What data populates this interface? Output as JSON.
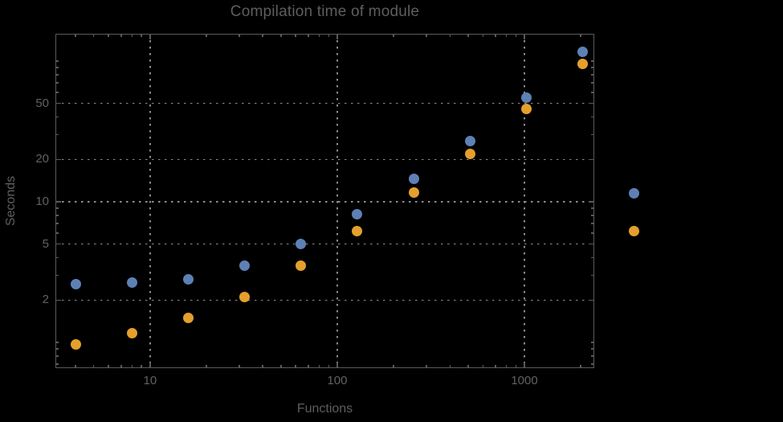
{
  "chart_data": {
    "type": "scatter",
    "title": "Compilation time of module",
    "xlabel": "Functions",
    "ylabel": "Seconds",
    "log_x": true,
    "log_y": true,
    "x": [
      4,
      8,
      16,
      32,
      64,
      128,
      256,
      512,
      1024,
      2048
    ],
    "series": [
      {
        "name": "blue",
        "color": "#5e81b5",
        "values": [
          2.6,
          2.65,
          2.8,
          3.5,
          5.0,
          8.2,
          14.5,
          27,
          55,
          117
        ]
      },
      {
        "name": "orange",
        "color": "#e5a02c",
        "values": [
          0.97,
          1.17,
          1.5,
          2.1,
          3.5,
          6.2,
          11.7,
          22,
          46,
          96
        ]
      }
    ],
    "x_ticks": [
      10,
      100,
      1000
    ],
    "x_tick_labels": [
      "10",
      "100",
      "1000"
    ],
    "y_ticks": [
      2,
      5,
      10,
      20,
      50
    ],
    "y_tick_labels": [
      "2",
      "5",
      "10",
      "20",
      "50"
    ],
    "xlim": [
      3.12,
      2362
    ],
    "ylim": [
      0.657,
      156.5
    ],
    "grid": "dotted",
    "legend": {
      "labels_visible": false,
      "markers": [
        {
          "series": "blue"
        },
        {
          "series": "orange"
        }
      ]
    },
    "colors": {
      "background": "#000000",
      "frame": "#5a5a5a",
      "grid": "#8c8c8c",
      "text": "#5e5e5e"
    }
  }
}
